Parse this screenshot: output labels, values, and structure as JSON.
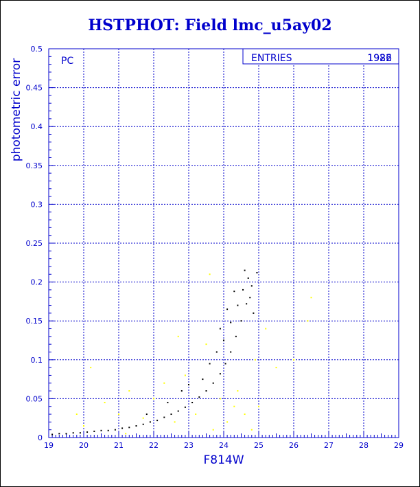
{
  "chart_data": {
    "type": "scatter",
    "title": "HSTPHOT: Field lmc_u5ay02",
    "xlabel": "F814W",
    "ylabel": "photometric error",
    "xlim": [
      19,
      29
    ],
    "ylim": [
      0,
      0.5
    ],
    "xticks": [
      "19",
      "20",
      "21",
      "22",
      "23",
      "24",
      "25",
      "26",
      "27",
      "28",
      "29"
    ],
    "yticks": [
      "0",
      "0.05",
      "0.1",
      "0.15",
      "0.2",
      "0.25",
      "0.3",
      "0.35",
      "0.4",
      "0.45",
      "0.5"
    ],
    "grid": true,
    "panel_label": "PC",
    "stats_box": {
      "label": "ENTRIES",
      "values": [
        "1922",
        "1986"
      ]
    },
    "series": [
      {
        "color": "#000000",
        "points": [
          [
            19.1,
            0.004
          ],
          [
            19.3,
            0.005
          ],
          [
            19.5,
            0.005
          ],
          [
            19.7,
            0.006
          ],
          [
            19.9,
            0.006
          ],
          [
            20.1,
            0.007
          ],
          [
            20.3,
            0.008
          ],
          [
            20.5,
            0.009
          ],
          [
            20.7,
            0.009
          ],
          [
            20.9,
            0.01
          ],
          [
            21.1,
            0.012
          ],
          [
            21.3,
            0.013
          ],
          [
            21.5,
            0.015
          ],
          [
            21.7,
            0.017
          ],
          [
            21.9,
            0.02
          ],
          [
            22.1,
            0.022
          ],
          [
            22.3,
            0.026
          ],
          [
            22.5,
            0.03
          ],
          [
            22.7,
            0.034
          ],
          [
            22.9,
            0.039
          ],
          [
            23.1,
            0.045
          ],
          [
            23.3,
            0.052
          ],
          [
            23.5,
            0.06
          ],
          [
            23.7,
            0.07
          ],
          [
            23.9,
            0.082
          ],
          [
            24.05,
            0.095
          ],
          [
            24.2,
            0.11
          ],
          [
            24.35,
            0.13
          ],
          [
            24.5,
            0.15
          ],
          [
            24.65,
            0.172
          ],
          [
            24.8,
            0.195
          ],
          [
            24.95,
            0.212
          ],
          [
            23.4,
            0.075
          ],
          [
            23.6,
            0.095
          ],
          [
            23.8,
            0.11
          ],
          [
            24.0,
            0.125
          ],
          [
            24.2,
            0.148
          ],
          [
            24.4,
            0.17
          ],
          [
            24.55,
            0.19
          ],
          [
            24.7,
            0.205
          ],
          [
            22.8,
            0.06
          ],
          [
            23.0,
            0.068
          ],
          [
            22.4,
            0.045
          ],
          [
            21.8,
            0.03
          ],
          [
            24.3,
            0.188
          ],
          [
            24.6,
            0.215
          ],
          [
            24.75,
            0.18
          ],
          [
            24.85,
            0.16
          ],
          [
            23.9,
            0.14
          ],
          [
            24.1,
            0.165
          ]
        ]
      },
      {
        "color": "#ffff00",
        "points": [
          [
            19.8,
            0.03
          ],
          [
            20.2,
            0.09
          ],
          [
            20.6,
            0.045
          ],
          [
            21.0,
            0.03
          ],
          [
            21.3,
            0.06
          ],
          [
            21.7,
            0.025
          ],
          [
            22.0,
            0.05
          ],
          [
            22.3,
            0.07
          ],
          [
            22.6,
            0.02
          ],
          [
            22.9,
            0.08
          ],
          [
            23.2,
            0.03
          ],
          [
            23.5,
            0.12
          ],
          [
            23.7,
            0.01
          ],
          [
            23.9,
            0.05
          ],
          [
            24.1,
            0.02
          ],
          [
            24.3,
            0.04
          ],
          [
            24.6,
            0.03
          ],
          [
            24.9,
            0.1
          ],
          [
            25.2,
            0.14
          ],
          [
            25.5,
            0.09
          ],
          [
            26.0,
            0.1
          ],
          [
            26.5,
            0.18
          ],
          [
            26.4,
            0.15
          ],
          [
            23.6,
            0.21
          ],
          [
            24.8,
            0.01
          ],
          [
            25.0,
            0.04
          ],
          [
            21.2,
            0.005
          ],
          [
            20.0,
            0.015
          ],
          [
            22.7,
            0.13
          ],
          [
            24.4,
            0.06
          ]
        ]
      }
    ]
  }
}
